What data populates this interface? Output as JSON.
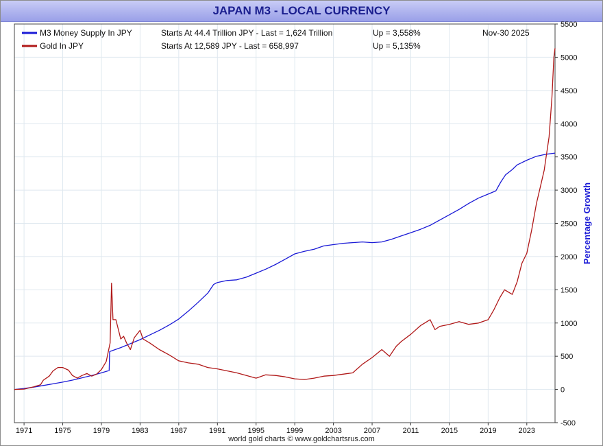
{
  "chart_data": {
    "type": "line",
    "title": "JAPAN M3 - LOCAL CURRENCY",
    "ylabel": "Percentage Growth",
    "xlabel": "",
    "date_label": "Nov-30   2025",
    "credit": "world gold charts © www.goldchartsrus.com",
    "ylim": [
      -500,
      5500
    ],
    "xlim": [
      1970.0,
      2025.92
    ],
    "grid": true,
    "legend_position": "top-left",
    "y_ticks": [
      -500,
      0,
      500,
      1000,
      1500,
      2000,
      2500,
      3000,
      3500,
      4000,
      4500,
      5000,
      5500
    ],
    "x_ticks": [
      1971,
      1975,
      1979,
      1983,
      1987,
      1991,
      1995,
      1999,
      2003,
      2007,
      2011,
      2015,
      2019,
      2023
    ],
    "series": [
      {
        "name": "M3 Money Supply In JPY",
        "info": "Starts At 44.4 Trillion JPY - Last = 1,624 Trillion",
        "change": "Up = 3,558%",
        "color": "#1a1ad6",
        "points": [
          [
            1970.0,
            0
          ],
          [
            1971.0,
            15
          ],
          [
            1972.0,
            35
          ],
          [
            1973.0,
            60
          ],
          [
            1974.0,
            85
          ],
          [
            1975.0,
            110
          ],
          [
            1976.0,
            140
          ],
          [
            1977.0,
            175
          ],
          [
            1978.0,
            210
          ],
          [
            1979.0,
            250
          ],
          [
            1979.8,
            285
          ],
          [
            1979.85,
            570
          ],
          [
            1981.0,
            630
          ],
          [
            1982.0,
            690
          ],
          [
            1983.0,
            750
          ],
          [
            1984.0,
            820
          ],
          [
            1985.0,
            890
          ],
          [
            1986.0,
            970
          ],
          [
            1987.0,
            1060
          ],
          [
            1988.0,
            1180
          ],
          [
            1989.0,
            1310
          ],
          [
            1990.0,
            1450
          ],
          [
            1990.6,
            1580
          ],
          [
            1991.0,
            1610
          ],
          [
            1992.0,
            1640
          ],
          [
            1993.0,
            1650
          ],
          [
            1994.0,
            1690
          ],
          [
            1995.0,
            1750
          ],
          [
            1996.0,
            1810
          ],
          [
            1997.0,
            1880
          ],
          [
            1998.0,
            1960
          ],
          [
            1999.0,
            2040
          ],
          [
            2000.0,
            2080
          ],
          [
            2001.0,
            2110
          ],
          [
            2002.0,
            2160
          ],
          [
            2003.0,
            2180
          ],
          [
            2004.0,
            2200
          ],
          [
            2005.0,
            2210
          ],
          [
            2006.0,
            2220
          ],
          [
            2007.0,
            2210
          ],
          [
            2008.0,
            2220
          ],
          [
            2009.0,
            2260
          ],
          [
            2010.0,
            2310
          ],
          [
            2011.0,
            2360
          ],
          [
            2012.0,
            2410
          ],
          [
            2013.0,
            2470
          ],
          [
            2014.0,
            2550
          ],
          [
            2015.0,
            2630
          ],
          [
            2016.0,
            2710
          ],
          [
            2017.0,
            2800
          ],
          [
            2018.0,
            2880
          ],
          [
            2019.0,
            2940
          ],
          [
            2019.8,
            2990
          ],
          [
            2020.3,
            3120
          ],
          [
            2020.8,
            3230
          ],
          [
            2021.5,
            3310
          ],
          [
            2022.0,
            3380
          ],
          [
            2023.0,
            3450
          ],
          [
            2024.0,
            3510
          ],
          [
            2025.0,
            3540
          ],
          [
            2025.92,
            3558
          ]
        ]
      },
      {
        "name": "Gold In JPY",
        "info": "Starts At 12,589 JPY - Last = 658,997",
        "change": "Up = 5,135%",
        "color": "#b01818",
        "points": [
          [
            1970.0,
            0
          ],
          [
            1971.0,
            5
          ],
          [
            1972.0,
            40
          ],
          [
            1972.7,
            70
          ],
          [
            1973.0,
            140
          ],
          [
            1973.6,
            200
          ],
          [
            1974.0,
            280
          ],
          [
            1974.5,
            330
          ],
          [
            1975.0,
            330
          ],
          [
            1975.6,
            290
          ],
          [
            1976.0,
            210
          ],
          [
            1976.5,
            170
          ],
          [
            1977.0,
            210
          ],
          [
            1977.5,
            240
          ],
          [
            1978.0,
            200
          ],
          [
            1978.5,
            230
          ],
          [
            1979.0,
            300
          ],
          [
            1979.5,
            420
          ],
          [
            1979.9,
            700
          ],
          [
            1980.05,
            1600
          ],
          [
            1980.2,
            1050
          ],
          [
            1980.5,
            1050
          ],
          [
            1981.0,
            760
          ],
          [
            1981.3,
            800
          ],
          [
            1981.6,
            700
          ],
          [
            1982.0,
            600
          ],
          [
            1982.4,
            780
          ],
          [
            1983.0,
            890
          ],
          [
            1983.3,
            760
          ],
          [
            1984.0,
            700
          ],
          [
            1985.0,
            600
          ],
          [
            1986.0,
            520
          ],
          [
            1987.0,
            430
          ],
          [
            1988.0,
            400
          ],
          [
            1989.0,
            380
          ],
          [
            1990.0,
            330
          ],
          [
            1991.0,
            310
          ],
          [
            1992.0,
            280
          ],
          [
            1993.0,
            250
          ],
          [
            1994.0,
            210
          ],
          [
            1995.0,
            170
          ],
          [
            1996.0,
            220
          ],
          [
            1997.0,
            210
          ],
          [
            1998.0,
            190
          ],
          [
            1999.0,
            160
          ],
          [
            2000.0,
            150
          ],
          [
            2001.0,
            170
          ],
          [
            2002.0,
            200
          ],
          [
            2003.0,
            210
          ],
          [
            2004.0,
            230
          ],
          [
            2005.0,
            250
          ],
          [
            2006.0,
            380
          ],
          [
            2007.0,
            480
          ],
          [
            2008.0,
            600
          ],
          [
            2008.8,
            500
          ],
          [
            2009.5,
            650
          ],
          [
            2010.0,
            720
          ],
          [
            2011.0,
            830
          ],
          [
            2012.0,
            960
          ],
          [
            2013.0,
            1050
          ],
          [
            2013.5,
            900
          ],
          [
            2014.0,
            950
          ],
          [
            2015.0,
            980
          ],
          [
            2016.0,
            1020
          ],
          [
            2017.0,
            980
          ],
          [
            2018.0,
            1000
          ],
          [
            2019.0,
            1050
          ],
          [
            2019.6,
            1200
          ],
          [
            2020.2,
            1380
          ],
          [
            2020.7,
            1500
          ],
          [
            2021.5,
            1430
          ],
          [
            2022.0,
            1620
          ],
          [
            2022.5,
            1900
          ],
          [
            2023.0,
            2050
          ],
          [
            2023.5,
            2400
          ],
          [
            2024.0,
            2800
          ],
          [
            2024.4,
            3050
          ],
          [
            2024.8,
            3300
          ],
          [
            2025.0,
            3500
          ],
          [
            2025.3,
            3800
          ],
          [
            2025.6,
            4400
          ],
          [
            2025.8,
            5000
          ],
          [
            2025.92,
            5135
          ]
        ]
      }
    ]
  }
}
